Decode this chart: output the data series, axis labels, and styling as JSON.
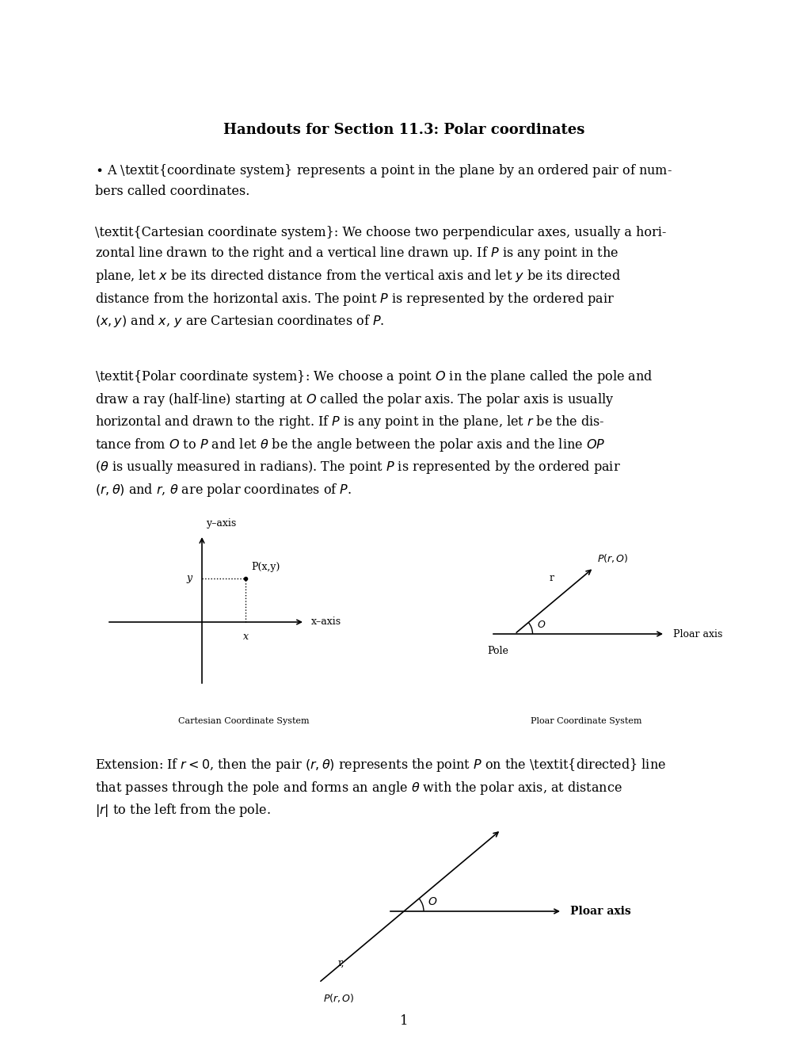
{
  "title": "Handouts for Section 11.3: Polar coordinates",
  "bg_color": "#ffffff",
  "text_color": "#000000",
  "body_fontsize": 11.5,
  "diagram1_caption": "Cartesian Coordinate System",
  "diagram2_caption": "Ploar Coordinate System",
  "page_number": "1"
}
